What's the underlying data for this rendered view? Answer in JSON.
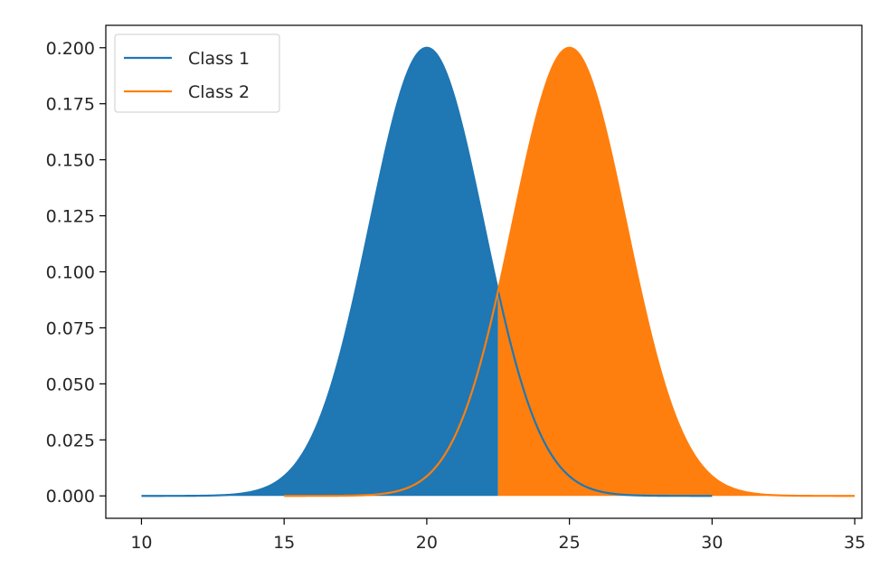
{
  "chart_data": {
    "type": "area",
    "title": "",
    "xlabel": "",
    "ylabel": "",
    "xlim": [
      8.75,
      35.25
    ],
    "ylim": [
      -0.01,
      0.21
    ],
    "x_ticks": [
      10,
      15,
      20,
      25,
      30,
      35
    ],
    "y_ticks": [
      0.0,
      0.025,
      0.05,
      0.075,
      0.1,
      0.125,
      0.15,
      0.175,
      0.2
    ],
    "y_tick_labels": [
      "0.000",
      "0.025",
      "0.050",
      "0.075",
      "0.100",
      "0.125",
      "0.150",
      "0.175",
      "0.200"
    ],
    "grid": false,
    "legend": {
      "position": "top-left"
    },
    "series": [
      {
        "name": "Class 1",
        "color": "#1f77b4",
        "distribution": "normal",
        "mean": 20,
        "std": 2,
        "x_range": [
          10,
          30
        ],
        "fill_x_range": [
          10,
          22.5
        ],
        "peak": 0.2
      },
      {
        "name": "Class 2",
        "color": "#ff7f0e",
        "distribution": "normal",
        "mean": 25,
        "std": 2,
        "x_range": [
          15,
          35
        ],
        "fill_x_range": [
          22.5,
          35
        ],
        "peak": 0.2
      }
    ]
  }
}
